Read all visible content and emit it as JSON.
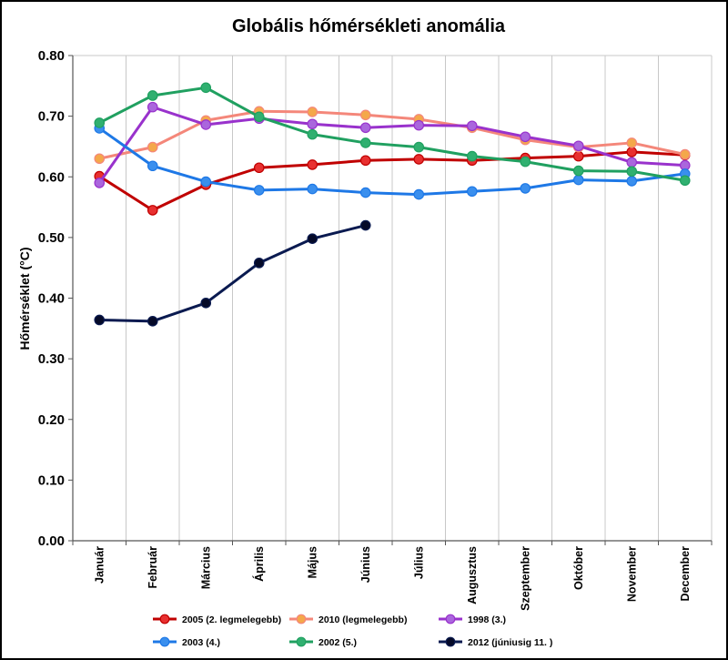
{
  "chart_data": {
    "type": "line",
    "title": "Globális hőmérsékleti anomália",
    "xlabel": "",
    "ylabel": "Hőmérséklet (°C)",
    "ylim": [
      0,
      0.8
    ],
    "yticks": [
      "0.00",
      "0.10",
      "0.20",
      "0.30",
      "0.40",
      "0.50",
      "0.60",
      "0.70",
      "0.80"
    ],
    "grid": "vertical",
    "legend_position": "bottom",
    "categories": [
      "Január",
      "Február",
      "Március",
      "Április",
      "Május",
      "Június",
      "Július",
      "Augusztus",
      "Szeptember",
      "Október",
      "November",
      "December"
    ],
    "series": [
      {
        "name": "2005 (2. legmelegebb)",
        "color": "#c00000",
        "marker": "#e83030",
        "values": [
          0.601,
          0.545,
          0.587,
          0.615,
          0.62,
          0.627,
          0.629,
          0.627,
          0.631,
          0.634,
          0.641,
          0.636
        ]
      },
      {
        "name": "2010 (legmelegebb)",
        "color": "#f4877a",
        "marker": "#f4a84a",
        "values": [
          0.63,
          0.649,
          0.693,
          0.708,
          0.707,
          0.702,
          0.695,
          0.681,
          0.661,
          0.649,
          0.656,
          0.637
        ]
      },
      {
        "name": "1998 (3.)",
        "color": "#9932cc",
        "marker": "#aa66dd",
        "values": [
          0.59,
          0.715,
          0.686,
          0.696,
          0.687,
          0.681,
          0.685,
          0.684,
          0.666,
          0.651,
          0.624,
          0.619
        ]
      },
      {
        "name": "2003 (4.)",
        "color": "#1e78e6",
        "marker": "#3a8fee",
        "values": [
          0.68,
          0.618,
          0.592,
          0.578,
          0.58,
          0.574,
          0.571,
          0.576,
          0.581,
          0.595,
          0.593,
          0.605
        ]
      },
      {
        "name": "2002 (5.)",
        "color": "#20a060",
        "marker": "#30b070",
        "values": [
          0.689,
          0.734,
          0.747,
          0.699,
          0.67,
          0.656,
          0.649,
          0.634,
          0.625,
          0.61,
          0.609,
          0.594
        ]
      },
      {
        "name": "2012 (júniusig 11. )",
        "color": "#0a1a50",
        "marker": "#050a28",
        "values": [
          0.364,
          0.362,
          0.392,
          0.458,
          0.498,
          0.52,
          null,
          null,
          null,
          null,
          null,
          null
        ]
      }
    ]
  }
}
